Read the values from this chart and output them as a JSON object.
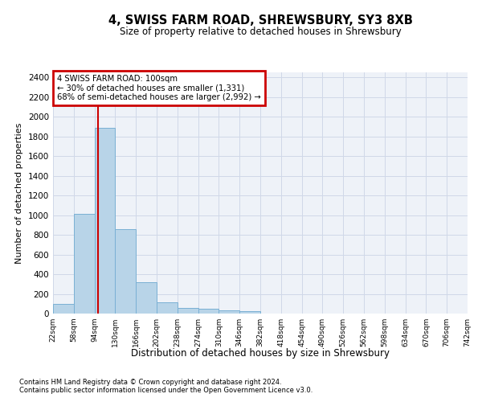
{
  "title": "4, SWISS FARM ROAD, SHREWSBURY, SY3 8XB",
  "subtitle": "Size of property relative to detached houses in Shrewsbury",
  "xlabel": "Distribution of detached houses by size in Shrewsbury",
  "ylabel": "Number of detached properties",
  "footnote1": "Contains HM Land Registry data © Crown copyright and database right 2024.",
  "footnote2": "Contains public sector information licensed under the Open Government Licence v3.0.",
  "bin_labels": [
    "22sqm",
    "58sqm",
    "94sqm",
    "130sqm",
    "166sqm",
    "202sqm",
    "238sqm",
    "274sqm",
    "310sqm",
    "346sqm",
    "382sqm",
    "418sqm",
    "454sqm",
    "490sqm",
    "526sqm",
    "562sqm",
    "598sqm",
    "634sqm",
    "670sqm",
    "706sqm",
    "742sqm"
  ],
  "bar_values": [
    95,
    1010,
    1890,
    860,
    315,
    115,
    60,
    50,
    35,
    25,
    0,
    0,
    0,
    0,
    0,
    0,
    0,
    0,
    0,
    0
  ],
  "bin_edges": [
    22,
    58,
    94,
    130,
    166,
    202,
    238,
    274,
    310,
    346,
    382,
    418,
    454,
    490,
    526,
    562,
    598,
    634,
    670,
    706,
    742
  ],
  "bar_color": "#b8d4e8",
  "bar_edge_color": "#7ab0d4",
  "grid_color": "#d0d8e8",
  "background_color": "#eef2f8",
  "vline_color": "#cc0000",
  "vline_x": 100,
  "annotation_line1": "4 SWISS FARM ROAD: 100sqm",
  "annotation_line2": "← 30% of detached houses are smaller (1,331)",
  "annotation_line3": "68% of semi-detached houses are larger (2,992) →",
  "annotation_box_color": "#cc0000",
  "ylim": [
    0,
    2450
  ],
  "yticks": [
    0,
    200,
    400,
    600,
    800,
    1000,
    1200,
    1400,
    1600,
    1800,
    2000,
    2200,
    2400
  ]
}
